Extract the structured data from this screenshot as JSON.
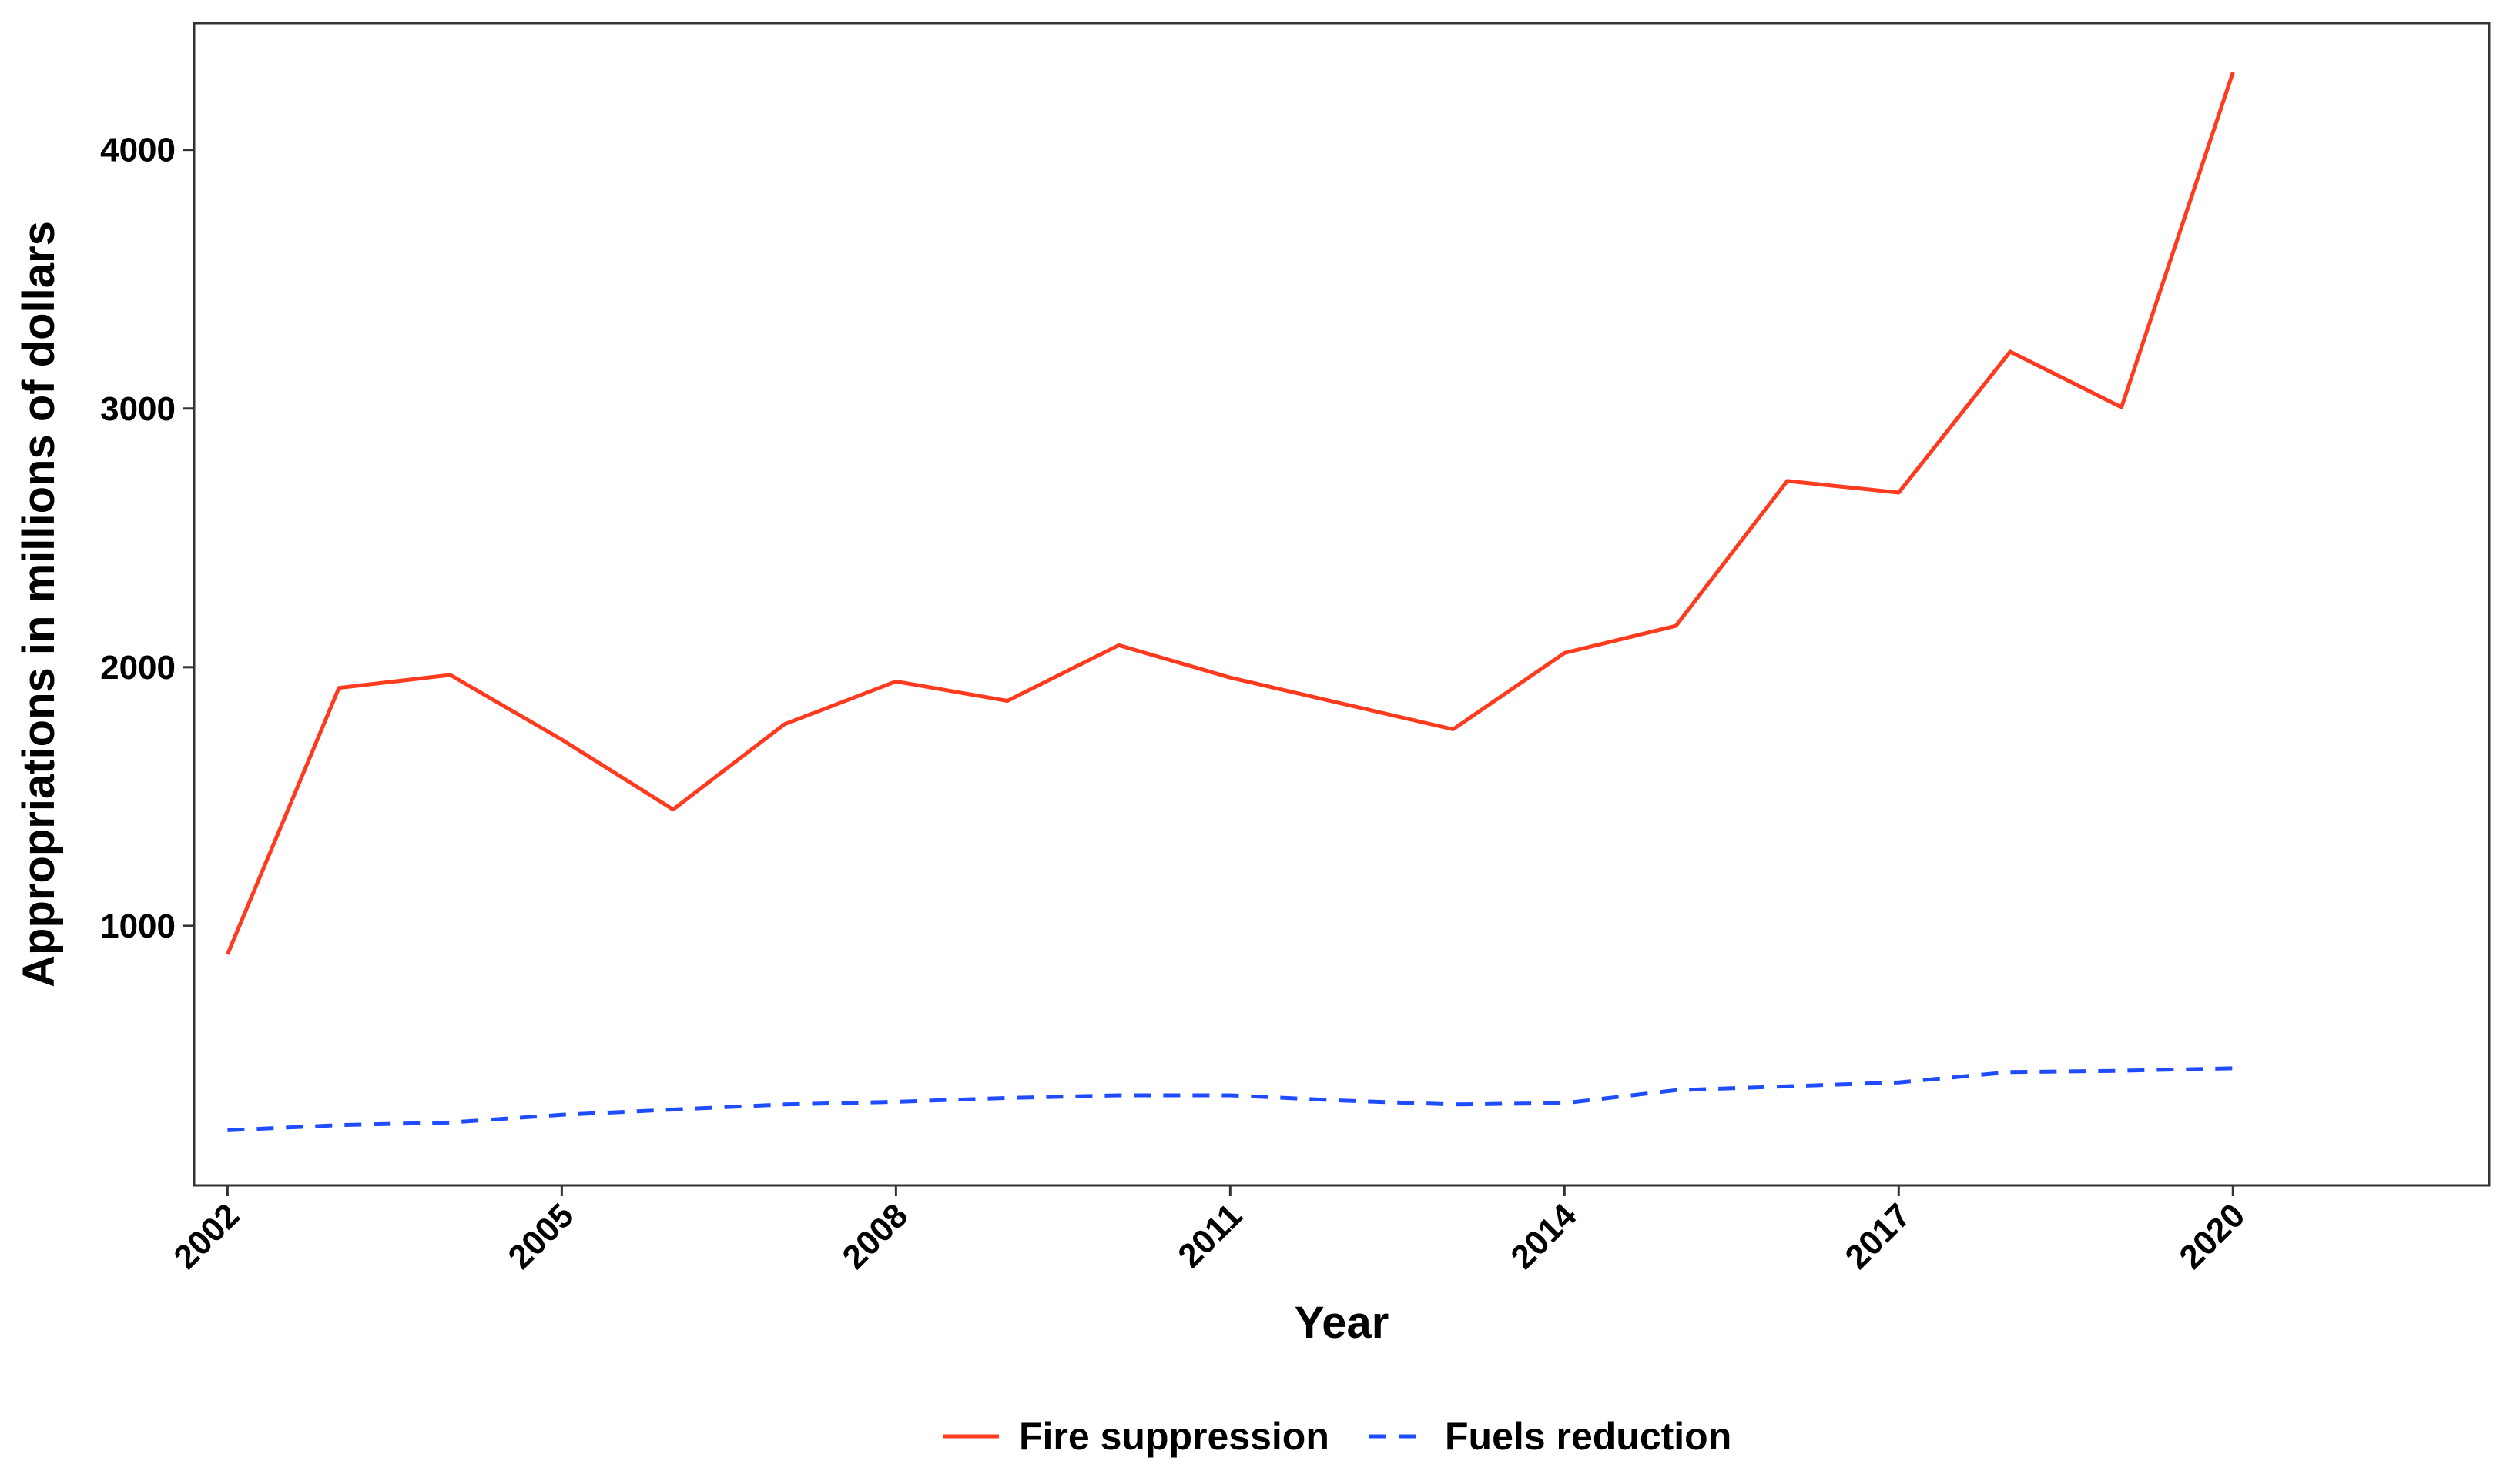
{
  "chart_data": {
    "type": "line",
    "title": "",
    "xlabel": "Year",
    "ylabel": "Appropriations in millions of dollars",
    "x": [
      2002,
      2003,
      2004,
      2005,
      2006,
      2007,
      2008,
      2009,
      2010,
      2011,
      2012,
      2013,
      2014,
      2015,
      2016,
      2017,
      2018,
      2019,
      2020
    ],
    "series": [
      {
        "name": "Fire suppression",
        "color": "#ff3b1f",
        "line_style": "solid",
        "values": [
          890,
          1920,
          1970,
          1720,
          1450,
          1780,
          1945,
          1870,
          2085,
          1960,
          1860,
          1760,
          2055,
          2160,
          2720,
          2675,
          3220,
          3005,
          4300
        ]
      },
      {
        "name": "Fuels reduction",
        "color": "#1f4cff",
        "line_style": "dashed",
        "values": [
          210,
          230,
          240,
          270,
          290,
          310,
          320,
          335,
          345,
          345,
          325,
          310,
          315,
          365,
          380,
          395,
          435,
          440,
          450
        ]
      }
    ],
    "x_ticks": [
      "2002",
      "2005",
      "2008",
      "2011",
      "2014",
      "2017",
      "2020"
    ],
    "y_ticks": [
      "1000",
      "2000",
      "3000",
      "4000"
    ],
    "xlim": [
      2001.7,
      2022.3
    ],
    "ylim": [
      -3,
      4490
    ],
    "grid": false,
    "legend_position": "bottom"
  }
}
